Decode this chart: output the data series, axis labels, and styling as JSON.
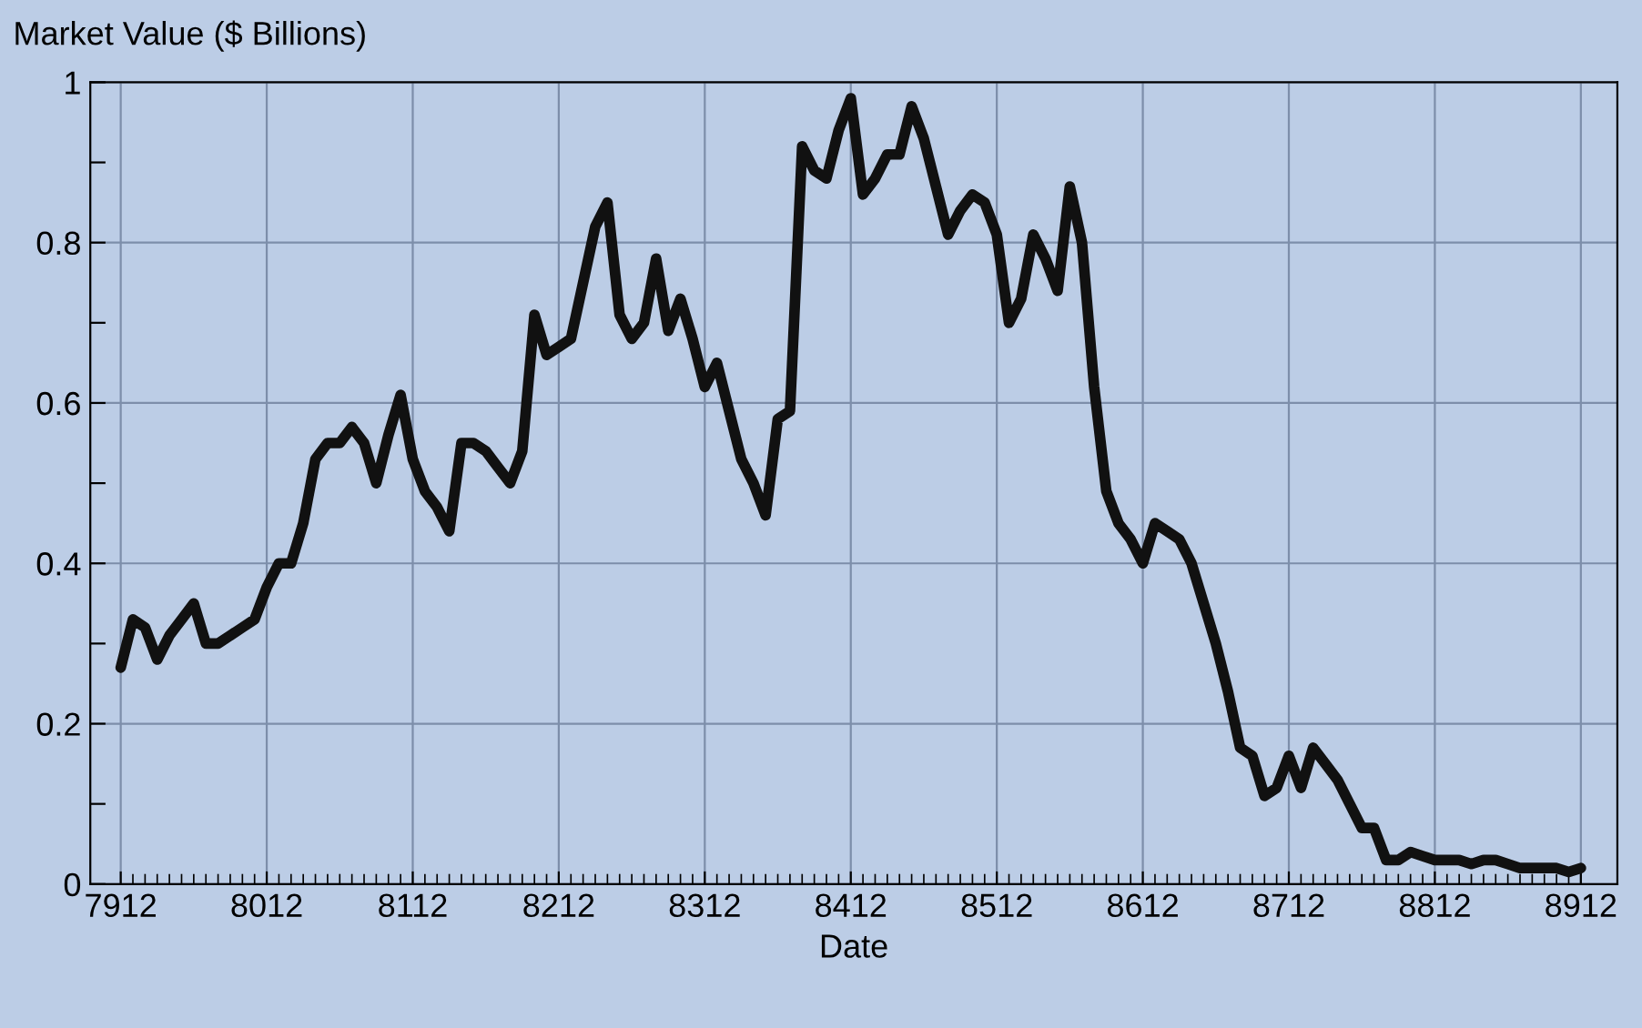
{
  "chart_data": {
    "type": "line",
    "ylabel": "Market Value ($ Billions)",
    "xlabel": "Date",
    "categories": [
      "7912",
      null,
      null,
      null,
      null,
      null,
      null,
      null,
      null,
      null,
      null,
      null,
      "8012",
      null,
      null,
      null,
      null,
      null,
      null,
      null,
      null,
      null,
      null,
      null,
      "8112",
      null,
      null,
      null,
      null,
      null,
      null,
      null,
      null,
      null,
      null,
      null,
      "8212",
      null,
      null,
      null,
      null,
      null,
      null,
      null,
      null,
      null,
      null,
      null,
      "8312",
      null,
      null,
      null,
      null,
      null,
      null,
      null,
      null,
      null,
      null,
      null,
      "8412",
      null,
      null,
      null,
      null,
      null,
      null,
      null,
      null,
      null,
      null,
      null,
      "8512",
      null,
      null,
      null,
      null,
      null,
      null,
      null,
      null,
      null,
      null,
      null,
      "8612",
      null,
      null,
      null,
      null,
      null,
      null,
      null,
      null,
      null,
      null,
      null,
      "8712",
      null,
      null,
      null,
      null,
      null,
      null,
      null,
      null,
      null,
      null,
      null,
      "8812",
      null,
      null,
      null,
      null,
      null,
      null,
      null,
      null,
      null,
      null,
      null,
      "8912"
    ],
    "series": [
      {
        "color": "#111111",
        "values": [
          0.27,
          0.33,
          0.32,
          0.28,
          0.31,
          0.33,
          0.35,
          0.3,
          0.3,
          0.31,
          0.32,
          0.33,
          0.37,
          0.4,
          0.4,
          0.45,
          0.53,
          0.55,
          0.55,
          0.57,
          0.55,
          0.5,
          0.56,
          0.61,
          0.53,
          0.49,
          0.47,
          0.44,
          0.55,
          0.55,
          0.54,
          0.52,
          0.5,
          0.54,
          0.71,
          0.66,
          0.67,
          0.68,
          0.75,
          0.82,
          0.85,
          0.71,
          0.68,
          0.7,
          0.78,
          0.69,
          0.73,
          0.68,
          0.62,
          0.65,
          0.59,
          0.53,
          0.5,
          0.46,
          0.58,
          0.59,
          0.92,
          0.89,
          0.88,
          0.94,
          0.98,
          0.86,
          0.88,
          0.91,
          0.91,
          0.97,
          0.93,
          0.87,
          0.81,
          0.84,
          0.86,
          0.85,
          0.81,
          0.7,
          0.73,
          0.81,
          0.78,
          0.74,
          0.87,
          0.8,
          0.62,
          0.49,
          0.45,
          0.43,
          0.4,
          0.45,
          0.44,
          0.43,
          0.4,
          0.35,
          0.3,
          0.24,
          0.17,
          0.16,
          0.11,
          0.12,
          0.16,
          0.12,
          0.17,
          0.15,
          0.13,
          0.1,
          0.07,
          0.07,
          0.03,
          0.03,
          0.04,
          0.035,
          0.03,
          0.03,
          0.03,
          0.025,
          0.03,
          0.03,
          0.025,
          0.02,
          0.02,
          0.02,
          0.02,
          0.015,
          0.02
        ]
      }
    ],
    "ylim": [
      0,
      1
    ],
    "yticks": [
      0,
      {
        "value": 0.1,
        "label": null
      },
      0.2,
      {
        "value": 0.3,
        "label": null
      },
      0.4,
      {
        "value": 0.5,
        "label": null
      },
      0.6,
      {
        "value": 0.7,
        "label": null
      },
      0.8,
      {
        "value": 0.9,
        "label": null
      },
      1
    ],
    "grid": true,
    "marker": "none",
    "line_style": "solid"
  }
}
